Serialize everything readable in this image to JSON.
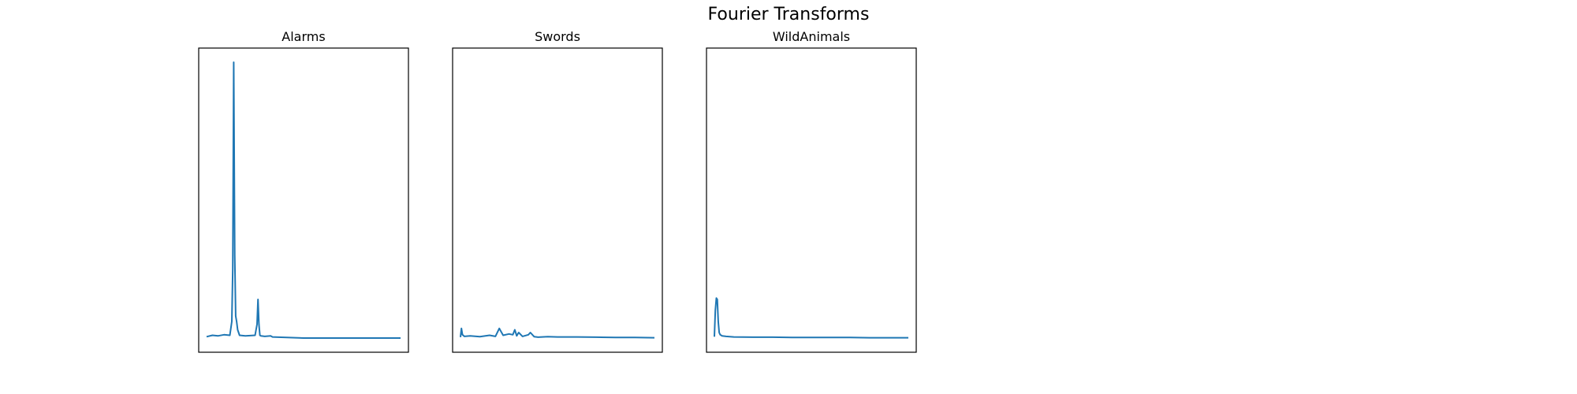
{
  "figure": {
    "title": "Fourier Transforms"
  },
  "colors": {
    "series": "#1f77b4",
    "frame": "#000000",
    "background": "#ffffff"
  },
  "chart_data": [
    {
      "type": "line",
      "title": "Alarms",
      "xlabel": "",
      "ylabel": "",
      "xlim": [
        0,
        1
      ],
      "ylim": [
        0,
        1
      ],
      "ticks_visible": false,
      "grid": false,
      "series": [
        {
          "x": [
            0.0,
            0.03,
            0.06,
            0.09,
            0.12,
            0.13,
            0.135,
            0.14,
            0.145,
            0.15,
            0.155,
            0.16,
            0.17,
            0.2,
            0.25,
            0.26,
            0.265,
            0.27,
            0.275,
            0.28,
            0.3,
            0.33,
            0.34,
            0.5,
            0.7,
            0.9,
            1.0
          ],
          "y": [
            0.005,
            0.01,
            0.008,
            0.012,
            0.01,
            0.06,
            0.25,
            1.0,
            0.3,
            0.08,
            0.06,
            0.03,
            0.01,
            0.008,
            0.01,
            0.05,
            0.14,
            0.05,
            0.01,
            0.008,
            0.006,
            0.008,
            0.004,
            0.0,
            0.0,
            0.0,
            0.0
          ]
        }
      ]
    },
    {
      "type": "line",
      "title": "Swords",
      "xlabel": "",
      "ylabel": "",
      "xlim": [
        0,
        1
      ],
      "ylim": [
        0,
        1
      ],
      "ticks_visible": false,
      "grid": false,
      "series": [
        {
          "x": [
            0.0,
            0.005,
            0.01,
            0.02,
            0.05,
            0.1,
            0.15,
            0.18,
            0.2,
            0.22,
            0.25,
            0.27,
            0.28,
            0.29,
            0.3,
            0.32,
            0.35,
            0.36,
            0.38,
            0.4,
            0.45,
            0.5,
            0.6,
            0.7,
            0.8,
            0.9,
            1.0
          ],
          "y": [
            0.003,
            0.035,
            0.012,
            0.006,
            0.008,
            0.005,
            0.01,
            0.006,
            0.035,
            0.01,
            0.015,
            0.012,
            0.03,
            0.008,
            0.02,
            0.006,
            0.012,
            0.02,
            0.005,
            0.003,
            0.005,
            0.004,
            0.004,
            0.003,
            0.002,
            0.002,
            0.001
          ]
        }
      ]
    },
    {
      "type": "line",
      "title": "WildAnimals",
      "xlabel": "",
      "ylabel": "",
      "xlim": [
        0,
        1
      ],
      "ylim": [
        0,
        1
      ],
      "ticks_visible": false,
      "grid": false,
      "series": [
        {
          "x": [
            0.0,
            0.005,
            0.01,
            0.015,
            0.02,
            0.025,
            0.03,
            0.04,
            0.06,
            0.1,
            0.2,
            0.3,
            0.4,
            0.5,
            0.6,
            0.7,
            0.8,
            0.9,
            1.0
          ],
          "y": [
            0.005,
            0.1,
            0.145,
            0.14,
            0.06,
            0.02,
            0.012,
            0.008,
            0.006,
            0.004,
            0.003,
            0.003,
            0.002,
            0.002,
            0.002,
            0.002,
            0.001,
            0.001,
            0.001
          ]
        }
      ]
    }
  ]
}
